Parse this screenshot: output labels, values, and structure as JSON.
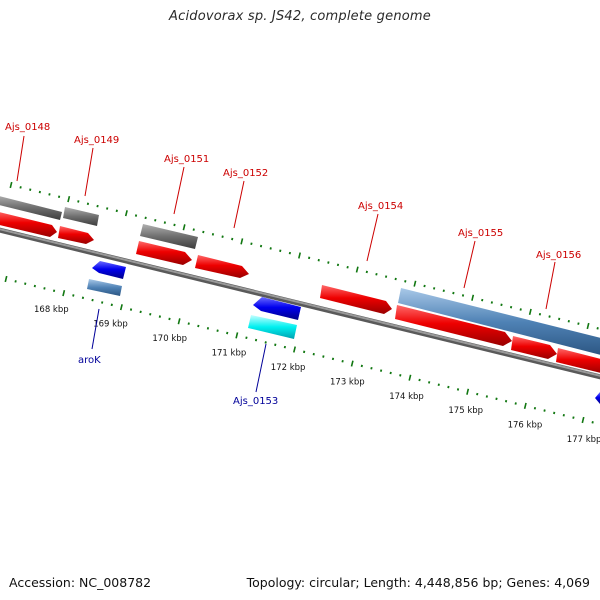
{
  "title": "Acidovorax sp. JS42, complete genome",
  "footer": {
    "accession": "Accession: NC_008782",
    "topology": "Topology: circular; Length: 4,448,856 bp; Genes: 4,069"
  },
  "colors": {
    "red_label": "#cc0000",
    "blue_label": "#000099",
    "tick_green": "#117711",
    "backbone": "#808080"
  },
  "ticks": [
    {
      "label": "168 kbp"
    },
    {
      "label": "169 kbp"
    },
    {
      "label": "170 kbp"
    },
    {
      "label": "171 kbp"
    },
    {
      "label": "172 kbp"
    },
    {
      "label": "173 kbp"
    },
    {
      "label": "174 kbp"
    },
    {
      "label": "175 kbp"
    },
    {
      "label": "176 kbp"
    },
    {
      "label": "177 kbp"
    }
  ],
  "gene_labels": [
    {
      "name": "Ajs_0148",
      "color": "#cc0000"
    },
    {
      "name": "Ajs_0149",
      "color": "#cc0000"
    },
    {
      "name": "Ajs_0151",
      "color": "#cc0000"
    },
    {
      "name": "Ajs_0152",
      "color": "#cc0000"
    },
    {
      "name": "Ajs_0154",
      "color": "#cc0000"
    },
    {
      "name": "Ajs_0155",
      "color": "#cc0000"
    },
    {
      "name": "Ajs_0156",
      "color": "#cc0000"
    },
    {
      "name": "aroK",
      "color": "#000099"
    },
    {
      "name": "Ajs_0153",
      "color": "#000099"
    }
  ]
}
